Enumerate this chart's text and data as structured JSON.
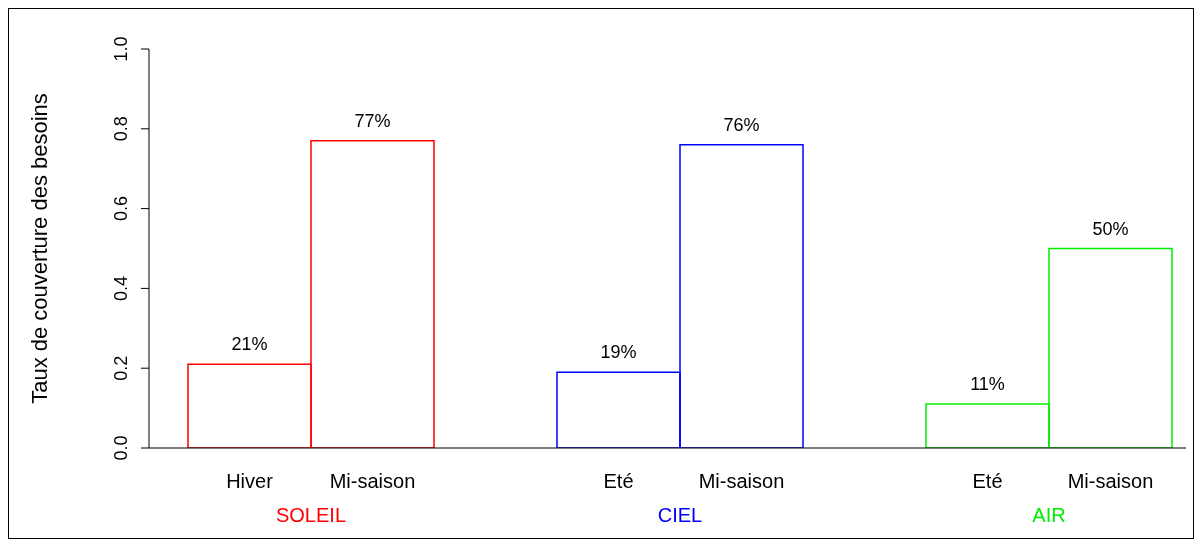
{
  "chart_data": {
    "type": "bar",
    "ylabel": "Taux de couverture des besoins",
    "categories": [
      "Hiver",
      "Mi-saison",
      "Eté",
      "Mi-saison",
      "Eté",
      "Mi-saison"
    ],
    "series": [
      {
        "name": "SOLEIL",
        "color": "#ff0000",
        "values": [
          0.21,
          0.77,
          null,
          null,
          null,
          null
        ],
        "value_labels": [
          "21%",
          "77%",
          null,
          null,
          null,
          null
        ]
      },
      {
        "name": "CIEL",
        "color": "#0000ff",
        "values": [
          null,
          null,
          0.19,
          0.76,
          null,
          null
        ],
        "value_labels": [
          null,
          null,
          "19%",
          "76%",
          null,
          null
        ]
      },
      {
        "name": "AIR",
        "color": "#00ee00",
        "values": [
          null,
          null,
          null,
          null,
          0.11,
          0.5
        ],
        "value_labels": [
          null,
          null,
          null,
          null,
          "11%",
          "50%"
        ]
      }
    ],
    "ylim": [
      0,
      1
    ],
    "yticks": [
      {
        "value": 0,
        "label": "0.0"
      },
      {
        "value": 0.2,
        "label": "0.2"
      },
      {
        "value": 0.4,
        "label": "0.4"
      },
      {
        "value": 0.6,
        "label": "0.6"
      },
      {
        "value": 0.8,
        "label": "0.8"
      },
      {
        "value": 1,
        "label": "1.0"
      }
    ],
    "grid": false,
    "legend": false
  }
}
